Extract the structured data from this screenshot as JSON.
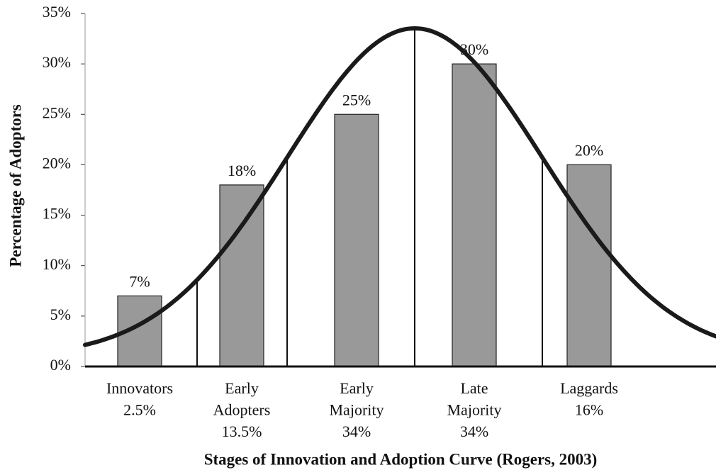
{
  "chart_data": {
    "type": "bar",
    "x_label": "Stages of Innovation and Adoption  Curve (Rogers, 2003)",
    "y_label": "Percentage of Adoptors",
    "categories": [
      [
        "Innovators",
        "2.5%"
      ],
      [
        "Early",
        "Adopters",
        "13.5%"
      ],
      [
        "Early",
        "Majority",
        "34%"
      ],
      [
        "Late",
        "Majority",
        "34%"
      ],
      [
        "Laggards",
        "16%"
      ]
    ],
    "values": [
      7,
      18,
      25,
      30,
      20
    ],
    "value_labels": [
      "7%",
      "18%",
      "25%",
      "30%",
      "20%"
    ],
    "color": "#999999",
    "ylim": [
      0,
      35
    ],
    "yticks": [
      {
        "value": 0,
        "label": "0%"
      },
      {
        "value": 5,
        "label": "5%"
      },
      {
        "value": 10,
        "label": "10%"
      },
      {
        "value": 15,
        "label": "15%"
      },
      {
        "value": 20,
        "label": "20%"
      },
      {
        "value": 25,
        "label": "25%"
      },
      {
        "value": 30,
        "label": "30%"
      },
      {
        "value": 35,
        "label": "35%"
      }
    ],
    "grid": false
  }
}
